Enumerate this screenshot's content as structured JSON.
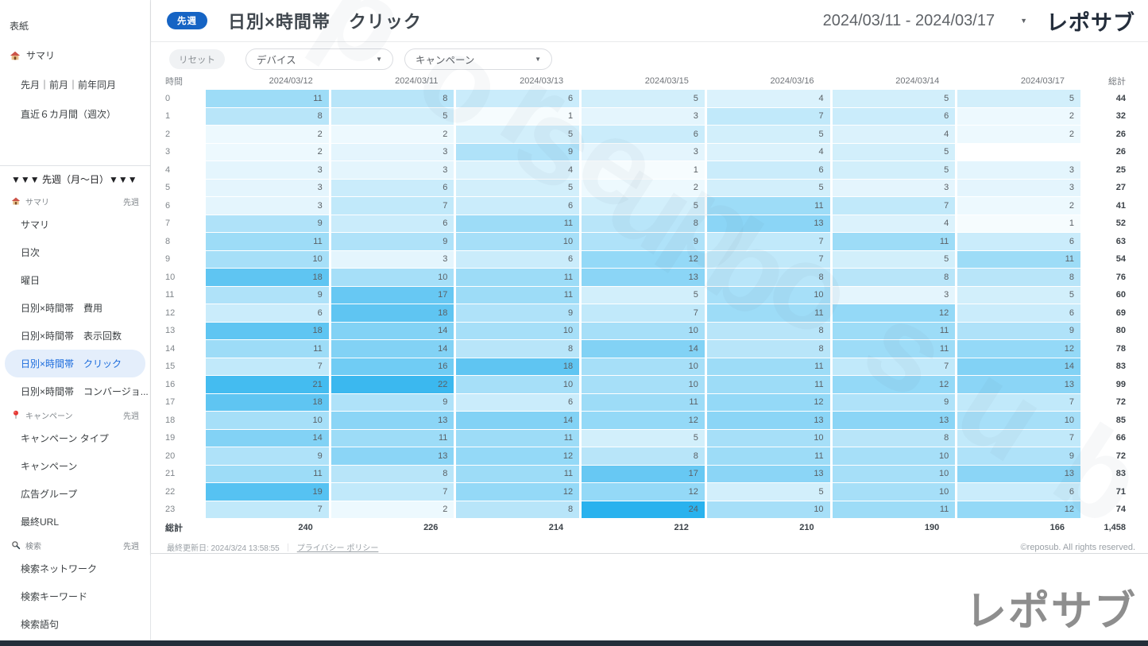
{
  "sidebar": {
    "top_items": [
      {
        "label": "表紙",
        "indent": 0,
        "icon": null
      },
      {
        "label": "サマリ",
        "indent": 0,
        "icon": "house-icon"
      },
      {
        "label": "先月｜前月｜前年同月",
        "indent": 1,
        "icon": null
      },
      {
        "label": "直近６カ月間（週次）",
        "indent": 1,
        "icon": null
      }
    ],
    "section_title": "▼▼▼ 先週（月〜日）▼▼▼",
    "groups": [
      {
        "header": {
          "label": "サマリ",
          "icon": "house-icon",
          "badge": "先週"
        },
        "items": [
          "サマリ",
          "日次",
          "曜日",
          "日別×時間帯　費用",
          "日別×時間帯　表示回数",
          "日別×時間帯　クリック",
          "日別×時間帯　コンバージョ..."
        ],
        "active_index": 5
      },
      {
        "header": {
          "label": "キャンペーン",
          "icon": "pin-icon",
          "badge": "先週"
        },
        "items": [
          "キャンペーン タイプ",
          "キャンペーン",
          "広告グループ",
          "最終URL"
        ],
        "active_index": -1
      },
      {
        "header": {
          "label": "検索",
          "icon": "search-icon",
          "badge": "先週"
        },
        "items": [
          "検索ネットワーク",
          "検索キーワード",
          "検索語句"
        ],
        "active_index": -1
      }
    ]
  },
  "header": {
    "badge": "先週",
    "title": "日別×時間帯　クリック",
    "date_range": "2024/03/11 - 2024/03/17",
    "logo": "レポサブ"
  },
  "filters": {
    "reset_label": "リセット",
    "device_label": "デバイス",
    "campaign_label": "キャンペーン"
  },
  "chart_data": {
    "type": "heatmap",
    "title": "日別×時間帯　クリック",
    "metric": "クリック",
    "row_header": "時間",
    "total_label": "総計",
    "columns": [
      "2024/03/12",
      "2024/03/11",
      "2024/03/13",
      "2024/03/15",
      "2024/03/16",
      "2024/03/14",
      "2024/03/17"
    ],
    "rows": [
      "0",
      "1",
      "2",
      "3",
      "4",
      "5",
      "6",
      "7",
      "8",
      "9",
      "10",
      "11",
      "12",
      "13",
      "14",
      "15",
      "16",
      "17",
      "18",
      "19",
      "20",
      "21",
      "22",
      "23"
    ],
    "values": [
      [
        11,
        8,
        6,
        5,
        4,
        5,
        5
      ],
      [
        8,
        5,
        1,
        3,
        7,
        6,
        2
      ],
      [
        2,
        2,
        5,
        6,
        5,
        4,
        2
      ],
      [
        2,
        3,
        9,
        3,
        4,
        5,
        null
      ],
      [
        3,
        3,
        4,
        1,
        6,
        5,
        3
      ],
      [
        3,
        6,
        5,
        2,
        5,
        3,
        3
      ],
      [
        3,
        7,
        6,
        5,
        11,
        7,
        2
      ],
      [
        9,
        6,
        11,
        8,
        13,
        4,
        1
      ],
      [
        11,
        9,
        10,
        9,
        7,
        11,
        6
      ],
      [
        10,
        3,
        6,
        12,
        7,
        5,
        11
      ],
      [
        18,
        10,
        11,
        13,
        8,
        8,
        8
      ],
      [
        9,
        17,
        11,
        5,
        10,
        3,
        5
      ],
      [
        6,
        18,
        9,
        7,
        11,
        12,
        6
      ],
      [
        18,
        14,
        10,
        10,
        8,
        11,
        9
      ],
      [
        11,
        14,
        8,
        14,
        8,
        11,
        12
      ],
      [
        7,
        16,
        18,
        10,
        11,
        7,
        14
      ],
      [
        21,
        22,
        10,
        10,
        11,
        12,
        13
      ],
      [
        18,
        9,
        6,
        11,
        12,
        9,
        7
      ],
      [
        10,
        13,
        14,
        12,
        13,
        13,
        10
      ],
      [
        14,
        11,
        11,
        5,
        10,
        8,
        7
      ],
      [
        9,
        13,
        12,
        8,
        11,
        10,
        9
      ],
      [
        11,
        8,
        11,
        17,
        13,
        10,
        13
      ],
      [
        19,
        7,
        12,
        12,
        5,
        10,
        6
      ],
      [
        7,
        2,
        8,
        24,
        10,
        11,
        12
      ]
    ],
    "row_totals": [
      44,
      32,
      26,
      26,
      25,
      27,
      41,
      52,
      63,
      54,
      76,
      60,
      69,
      80,
      78,
      83,
      99,
      72,
      85,
      66,
      72,
      83,
      71,
      74
    ],
    "column_totals": [
      240,
      226,
      214,
      212,
      210,
      190,
      166
    ],
    "grand_total": 1458,
    "scale": {
      "min": 0,
      "max": 24,
      "min_color": "#ffffff",
      "max_color": "#29b2ee"
    }
  },
  "footer": {
    "last_updated": "最終更新日: 2024/3/24 13:58:55",
    "separator": "｜",
    "privacy_link": "プライバシー ポリシー",
    "copyright": "©reposub. All rights reserved."
  },
  "bottom_logo": "レポサブ",
  "watermark_text": "reposub",
  "colors": {
    "heat_max": "#29b2ee",
    "badge_blue": "#1664c4",
    "active_item_text": "#1a6bdc",
    "active_item_bg": "#e4eefb"
  }
}
